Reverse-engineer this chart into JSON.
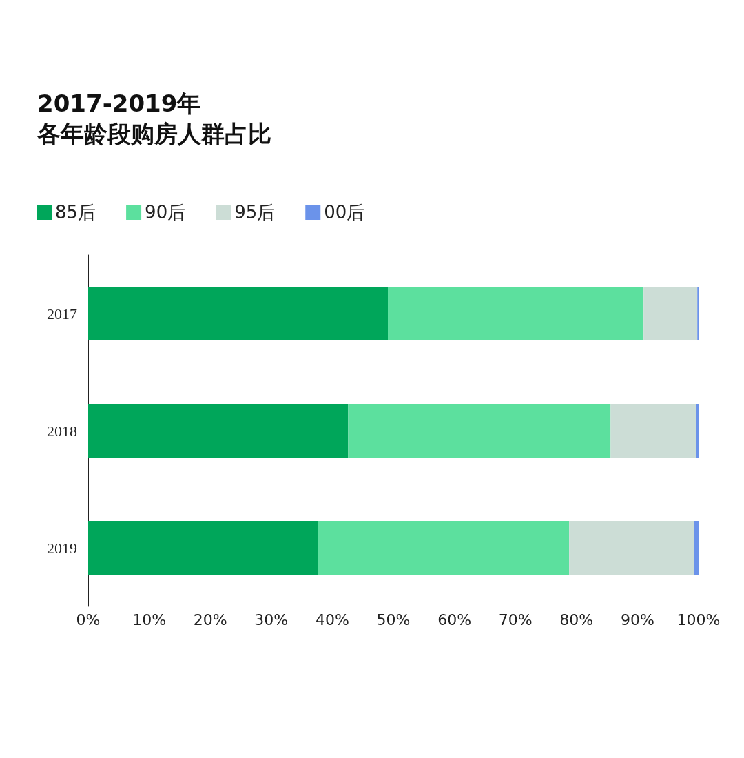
{
  "chart_data": {
    "type": "bar",
    "orientation": "horizontal",
    "stacked": true,
    "title": "2017-2019年",
    "subtitle": "各年龄段购房人群占比",
    "categories": [
      "2017",
      "2018",
      "2019"
    ],
    "series": [
      {
        "name": "85后",
        "color": "#00a65a",
        "values": [
          49.1,
          42.6,
          37.7
        ]
      },
      {
        "name": "90后",
        "color": "#5ce09e",
        "values": [
          41.9,
          43.0,
          41.1
        ]
      },
      {
        "name": "95后",
        "color": "#ccddd6",
        "values": [
          8.8,
          14.0,
          20.5
        ]
      },
      {
        "name": "00后",
        "color": "#6b93ea",
        "values": [
          0.2,
          0.4,
          0.7
        ]
      }
    ],
    "xlim": [
      0,
      100
    ],
    "xticks": [
      {
        "value": 0,
        "label": "0%"
      },
      {
        "value": 10,
        "label": "10%"
      },
      {
        "value": 20,
        "label": "20%"
      },
      {
        "value": 30,
        "label": "30%"
      },
      {
        "value": 40,
        "label": "40%"
      },
      {
        "value": 50,
        "label": "50%"
      },
      {
        "value": 60,
        "label": "60%"
      },
      {
        "value": 70,
        "label": "70%"
      },
      {
        "value": 80,
        "label": "80%"
      },
      {
        "value": 90,
        "label": "90%"
      },
      {
        "value": 100,
        "label": "100%"
      }
    ],
    "legend": "top left",
    "grid": false
  }
}
